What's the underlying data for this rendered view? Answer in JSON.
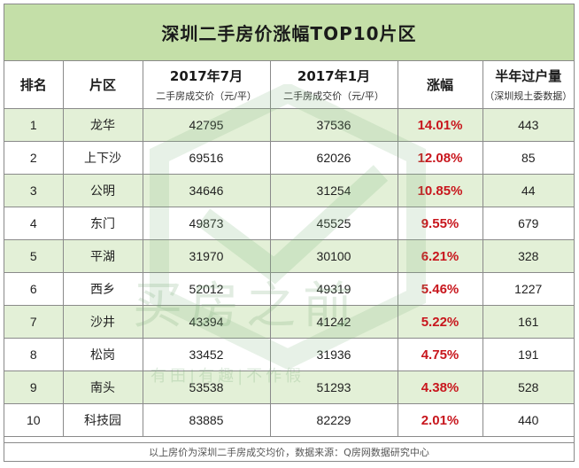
{
  "title": "深圳二手房价涨幅TOP10片区",
  "header": {
    "rank": "排名",
    "district": "片区",
    "jul_label": "2017年7月",
    "jul_sub": "二手房成交价（元/平）",
    "jan_label": "2017年1月",
    "jan_sub": "二手房成交价（元/平）",
    "rise": "涨幅",
    "volume_label": "半年过户量",
    "volume_sub": "（深圳规土委数据）"
  },
  "rows": [
    {
      "rank": "1",
      "district": "龙华",
      "jul": "42795",
      "jan": "37536",
      "rise": "14.01%",
      "volume": "443"
    },
    {
      "rank": "2",
      "district": "上下沙",
      "jul": "69516",
      "jan": "62026",
      "rise": "12.08%",
      "volume": "85"
    },
    {
      "rank": "3",
      "district": "公明",
      "jul": "34646",
      "jan": "31254",
      "rise": "10.85%",
      "volume": "44"
    },
    {
      "rank": "4",
      "district": "东门",
      "jul": "49873",
      "jan": "45525",
      "rise": "9.55%",
      "volume": "679"
    },
    {
      "rank": "5",
      "district": "平湖",
      "jul": "31970",
      "jan": "30100",
      "rise": "6.21%",
      "volume": "328"
    },
    {
      "rank": "6",
      "district": "西乡",
      "jul": "52012",
      "jan": "49319",
      "rise": "5.46%",
      "volume": "1227"
    },
    {
      "rank": "7",
      "district": "沙井",
      "jul": "43394",
      "jan": "41242",
      "rise": "5.22%",
      "volume": "161"
    },
    {
      "rank": "8",
      "district": "松岗",
      "jul": "33452",
      "jan": "31936",
      "rise": "4.75%",
      "volume": "191"
    },
    {
      "rank": "9",
      "district": "南头",
      "jul": "53538",
      "jan": "51293",
      "rise": "4.38%",
      "volume": "528"
    },
    {
      "rank": "10",
      "district": "科技园",
      "jul": "83885",
      "jan": "82229",
      "rise": "2.01%",
      "volume": "440"
    }
  ],
  "footer": "以上房价为深圳二手房成交均价，数据来源：Q房网数据研究中心",
  "watermark": {
    "main": "买房之前",
    "sub": "有田|有趣|不作假"
  },
  "colors": {
    "title_bg": "#c4dfa8",
    "alt_row_bg": "#e3f0d7",
    "rise_text": "#c8161d",
    "border": "#8a8a8a"
  }
}
